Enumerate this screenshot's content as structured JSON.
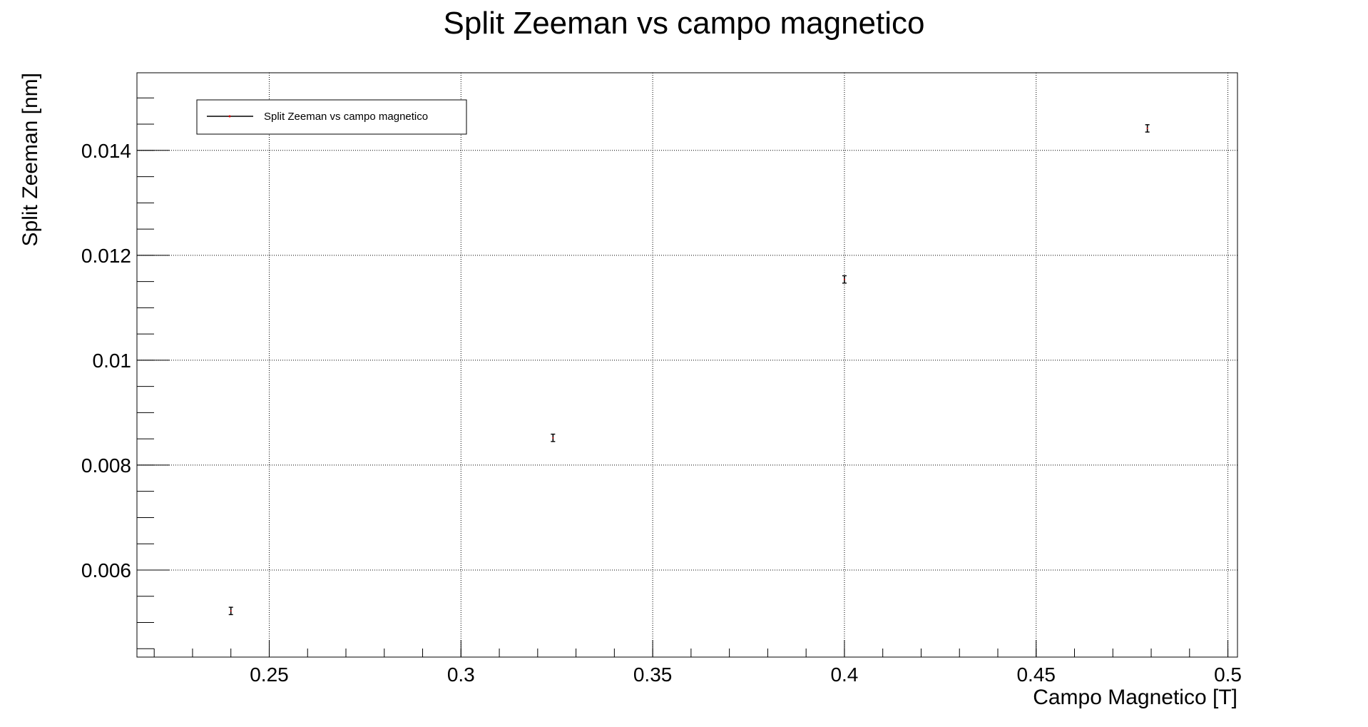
{
  "chart_data": {
    "type": "scatter",
    "title": "Split Zeeman vs campo magnetico",
    "xlabel": "Campo Magnetico [T]",
    "ylabel": "Split Zeeman [nm]",
    "xlim": [
      0.2155,
      0.5025
    ],
    "ylim": [
      0.00434,
      0.01548
    ],
    "x_ticks": [
      "0.25",
      "0.3",
      "0.35",
      "0.4",
      "0.45",
      "0.5"
    ],
    "y_ticks": [
      "0.006",
      "0.008",
      "0.01",
      "0.012",
      "0.014"
    ],
    "grid": true,
    "legend_position": "top-left",
    "series": [
      {
        "name": "Split Zeeman vs campo magnetico",
        "color": "#000000",
        "marker_color": "#cc0000",
        "points": [
          {
            "x": 0.24,
            "y": 0.00522,
            "yerr": 7e-05
          },
          {
            "x": 0.324,
            "y": 0.00852,
            "yerr": 7e-05
          },
          {
            "x": 0.4,
            "y": 0.01154,
            "yerr": 7e-05
          },
          {
            "x": 0.479,
            "y": 0.01442,
            "yerr": 7e-05
          }
        ]
      }
    ]
  }
}
